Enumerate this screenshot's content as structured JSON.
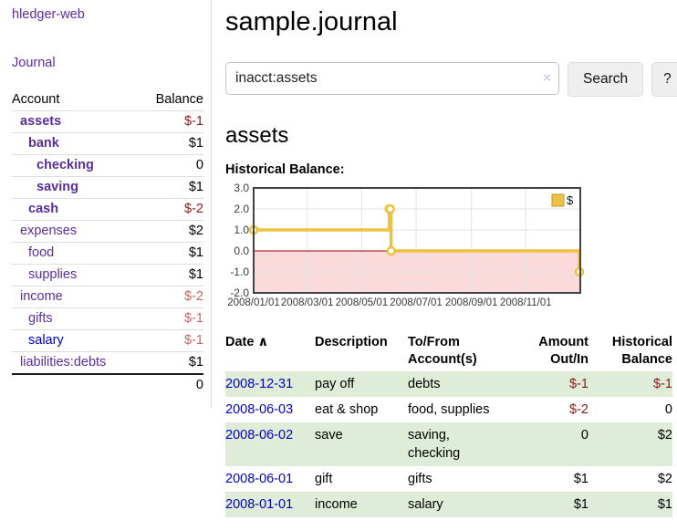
{
  "app": {
    "title": "hledger-web",
    "nav_journal": "Journal"
  },
  "sidebar": {
    "accounts_table": {
      "headers": {
        "account": "Account",
        "balance": "Balance"
      },
      "rows": [
        {
          "name": "assets",
          "indent": 1,
          "balance": "$-1",
          "bold": true
        },
        {
          "name": "bank",
          "indent": 2,
          "balance": "$1",
          "bold": true
        },
        {
          "name": "checking",
          "indent": 3,
          "balance": "0",
          "bold": true
        },
        {
          "name": "saving",
          "indent": 3,
          "balance": "$1",
          "bold": true
        },
        {
          "name": "cash",
          "indent": 2,
          "balance": "$-2",
          "bold": true
        },
        {
          "name": "expenses",
          "indent": 1,
          "balance": "$2"
        },
        {
          "name": "food",
          "indent": 2,
          "balance": "$1"
        },
        {
          "name": "supplies",
          "indent": 2,
          "balance": "$1"
        },
        {
          "name": "income",
          "indent": 1,
          "balance": "$-2"
        },
        {
          "name": "gifts",
          "indent": 2,
          "balance": "$-1"
        },
        {
          "name": "salary",
          "indent": 2,
          "balance": "$-1",
          "link_color": "blue"
        },
        {
          "name": "liabilities:debts",
          "indent": 1,
          "balance": "$1",
          "last": true
        }
      ],
      "total": "0"
    }
  },
  "header": {
    "title": "sample.journal"
  },
  "search": {
    "query": "inacct:assets",
    "clear_icon": "×",
    "button_label": "Search",
    "help_label": "?"
  },
  "account_page": {
    "heading": "assets",
    "chart_title": "Historical Balance:"
  },
  "chart_data": {
    "type": "line",
    "title": "Historical Balance",
    "step": true,
    "x_range": [
      "2008-01-01",
      "2009-01-01"
    ],
    "x_ticks": [
      "2008/01/01",
      "2008/03/01",
      "2008/05/01",
      "2008/07/01",
      "2008/09/01",
      "2008/11/01"
    ],
    "y_ticks": [
      3.0,
      2.0,
      1.0,
      0.0,
      -1.0,
      -2.0
    ],
    "y_tick_labels": [
      "3.0",
      "2.0",
      "1.0",
      "0.0",
      "-1.0",
      "-2.0"
    ],
    "ylim": [
      -2,
      3
    ],
    "legend": "$",
    "legend_position": "top-right",
    "grid": true,
    "series": [
      {
        "name": "$",
        "color": "#EDC240",
        "points": [
          {
            "date": "2008-01-01",
            "value": 1
          },
          {
            "date": "2008-06-01",
            "value": 2
          },
          {
            "date": "2008-06-02",
            "value": 2
          },
          {
            "date": "2008-06-03",
            "value": 0
          },
          {
            "date": "2008-12-31",
            "value": -1
          }
        ]
      }
    ],
    "zero_line_color": "#a40000",
    "negative_region_color": "#fadada",
    "gridline_color": "#e4e4e4",
    "border_color": "#424242",
    "tick_text_color": "#3a3a3a"
  },
  "register": {
    "sort_indicator": "∧",
    "headers": [
      "Date",
      "Description",
      "To/From Account(s)",
      "Amount Out/In",
      "Historical Balance"
    ],
    "rows": [
      {
        "date": "2008-12-31",
        "description": "pay off",
        "accounts": "debts",
        "amount": "$-1",
        "balance": "$-1"
      },
      {
        "date": "2008-06-03",
        "description": "eat & shop",
        "accounts": "food, supplies",
        "amount": "$-2",
        "balance": "0"
      },
      {
        "date": "2008-06-02",
        "description": "save",
        "accounts": "saving, checking",
        "amount": "0",
        "balance": "$2"
      },
      {
        "date": "2008-06-01",
        "description": "gift",
        "accounts": "gifts",
        "amount": "$1",
        "balance": "$2"
      },
      {
        "date": "2008-01-01",
        "description": "income",
        "accounts": "salary",
        "amount": "$1",
        "balance": "$1"
      }
    ]
  },
  "colors": {
    "link_purple": "#5a2d9e",
    "link_blue": "#0000cc",
    "negative_strong": "#8b1a1a",
    "negative_muted": "#c26666",
    "row_stripe_green": "#deecd8",
    "series_gold": "#EDC240"
  }
}
